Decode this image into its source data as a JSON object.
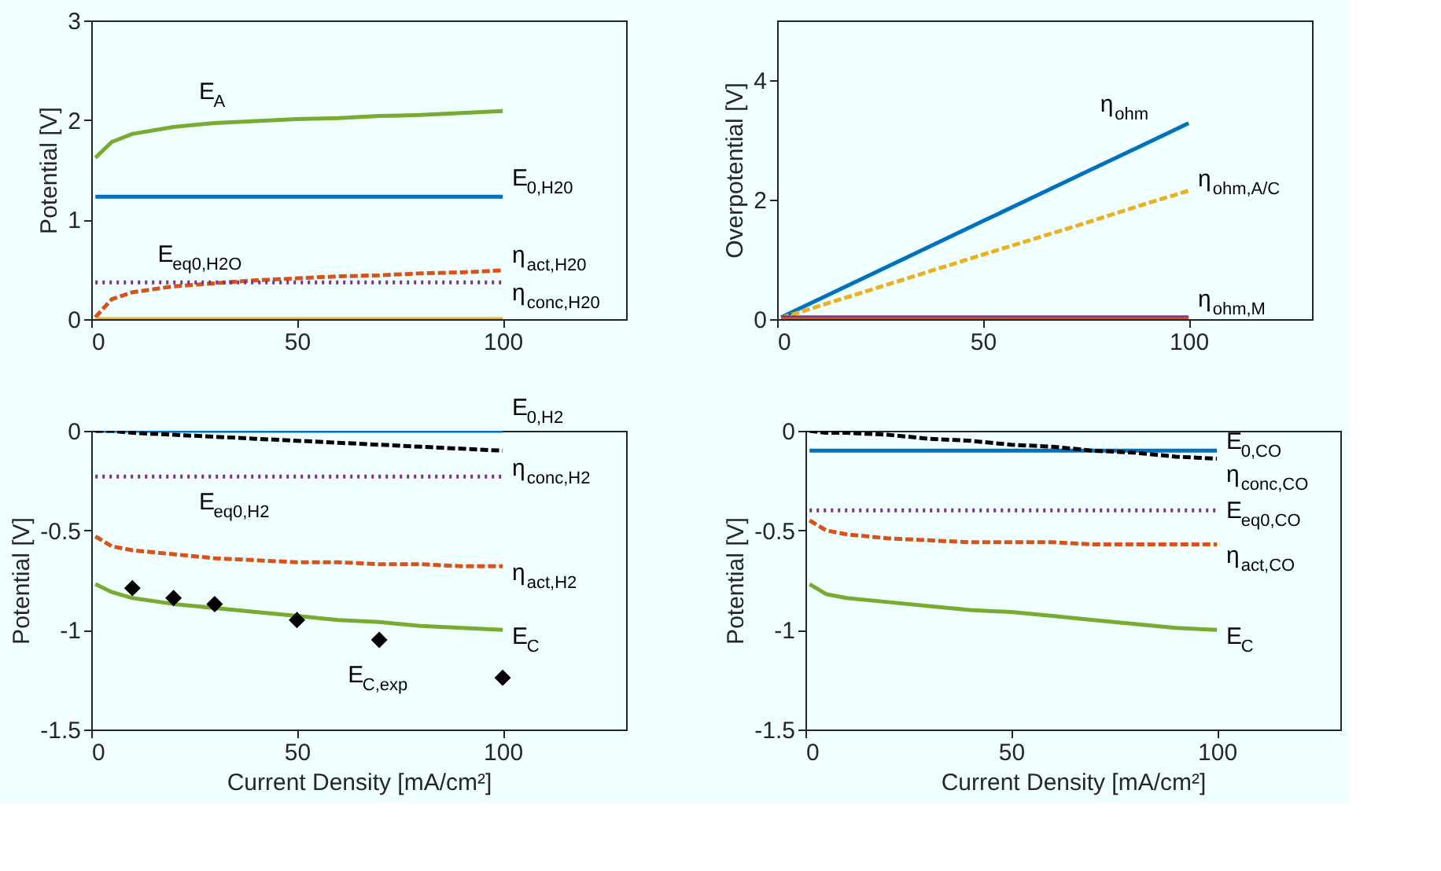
{
  "chart_data": [
    {
      "type": "line",
      "ylabel": "Potential [V]",
      "xlim": [
        0,
        130
      ],
      "xticks": [
        0,
        50,
        100
      ],
      "ylim": [
        0,
        3
      ],
      "yticks": [
        0,
        1,
        2,
        3
      ],
      "grid": false,
      "x": [
        1,
        5,
        10,
        20,
        30,
        40,
        50,
        60,
        70,
        80,
        90,
        100
      ],
      "series": [
        {
          "name": "E$_{A}$",
          "color": "#77ac30",
          "line_style": "solid",
          "values": [
            1.62,
            1.78,
            1.86,
            1.93,
            1.97,
            1.99,
            2.01,
            2.02,
            2.04,
            2.05,
            2.07,
            2.09
          ]
        },
        {
          "name": "E$_{0,H20}$",
          "color": "#0072bd",
          "line_style": "solid",
          "values": [
            1.23,
            1.23,
            1.23,
            1.23,
            1.23,
            1.23,
            1.23,
            1.23,
            1.23,
            1.23,
            1.23,
            1.23
          ]
        },
        {
          "name": "η$_{act,H20}$",
          "color": "#d95319",
          "line_style": "dashed",
          "values": [
            0.02,
            0.2,
            0.27,
            0.33,
            0.36,
            0.39,
            0.41,
            0.43,
            0.44,
            0.46,
            0.47,
            0.49
          ]
        },
        {
          "name": "E$_{eq0,H2O}$",
          "color": "#7e2f8e",
          "line_style": "dotted",
          "values": [
            0.37,
            0.37,
            0.37,
            0.37,
            0.37,
            0.37,
            0.37,
            0.37,
            0.37,
            0.37,
            0.37,
            0.37
          ]
        },
        {
          "name": "η$_{conc,H20}$",
          "color": "#edb120",
          "line_style": "solid",
          "values": [
            0,
            0,
            0,
            0,
            0,
            0,
            0,
            0,
            0,
            0,
            0,
            0
          ]
        }
      ]
    },
    {
      "type": "line",
      "ylabel": "Overpotential [V]",
      "xlim": [
        0,
        130
      ],
      "xticks": [
        0,
        50,
        100
      ],
      "ylim": [
        0,
        5
      ],
      "yticks": [
        0,
        2,
        4
      ],
      "grid": false,
      "x": [
        1,
        25,
        50,
        75,
        90,
        100
      ],
      "series": [
        {
          "name": "η$_{ohm}$",
          "color": "#0072bd",
          "line_style": "solid",
          "values": [
            0.03,
            0.82,
            1.64,
            2.46,
            2.95,
            3.28
          ]
        },
        {
          "name": "η$_{ohm,A/C}$",
          "color": "#edb120",
          "line_style": "dashed",
          "values": [
            0.02,
            0.54,
            1.08,
            1.61,
            1.94,
            2.15
          ]
        },
        {
          "name": "η$_{ohm,M}$",
          "color": "#7e2f8e",
          "line_style": "solid",
          "values": [
            0.03,
            0.03,
            0.03,
            0.03,
            0.03,
            0.03
          ]
        },
        {
          "color": "#d95319",
          "line_style": "solid",
          "values": [
            0,
            0,
            0,
            0,
            0,
            0
          ]
        }
      ]
    },
    {
      "type": "line",
      "xlabel": "Current Density [mA/cm²]",
      "ylabel": "Potential [V]",
      "xlim": [
        0,
        130
      ],
      "xticks": [
        0,
        50,
        100
      ],
      "ylim": [
        -1.5,
        0
      ],
      "yticks": [
        -1.5,
        -1,
        -0.5,
        0
      ],
      "grid": false,
      "x": [
        1,
        5,
        10,
        20,
        30,
        40,
        50,
        60,
        70,
        80,
        90,
        100
      ],
      "series": [
        {
          "name": "E$_{0,H2}$",
          "color": "#0072bd",
          "line_style": "solid",
          "values": [
            0,
            0,
            0,
            0,
            0,
            0,
            0,
            0,
            0,
            0,
            0,
            0
          ]
        },
        {
          "name": "η$_{conc,H2}$",
          "color": "#000000",
          "line_style": "dashed",
          "values": [
            0,
            0,
            -0.01,
            -0.02,
            -0.03,
            -0.04,
            -0.05,
            -0.06,
            -0.07,
            -0.08,
            -0.09,
            -0.1
          ]
        },
        {
          "name": "E$_{eq0,H2}$",
          "color": "#7e2f8e",
          "line_style": "dotted",
          "values": [
            -0.23,
            -0.23,
            -0.23,
            -0.23,
            -0.23,
            -0.23,
            -0.23,
            -0.23,
            -0.23,
            -0.23,
            -0.23,
            -0.23
          ]
        },
        {
          "name": "η$_{act,H2}$",
          "color": "#d95319",
          "line_style": "dashed",
          "values": [
            -0.53,
            -0.58,
            -0.6,
            -0.62,
            -0.64,
            -0.65,
            -0.66,
            -0.66,
            -0.67,
            -0.67,
            -0.68,
            -0.68
          ]
        },
        {
          "name": "E$_{C}$",
          "color": "#77ac30",
          "line_style": "solid",
          "values": [
            -0.77,
            -0.81,
            -0.84,
            -0.87,
            -0.89,
            -0.91,
            -0.93,
            -0.95,
            -0.96,
            -0.98,
            -0.99,
            -1.0
          ]
        },
        {
          "name": "E$_{C,exp}$",
          "type": "scatter",
          "marker": "diamond",
          "color": "#000000",
          "x": [
            10,
            20,
            30,
            50,
            70,
            100
          ],
          "values": [
            -0.79,
            -0.84,
            -0.87,
            -0.95,
            -1.05,
            -1.24
          ]
        }
      ]
    },
    {
      "type": "line",
      "xlabel": "Current Density [mA/cm²]",
      "ylabel": "Potential [V]",
      "xlim": [
        0,
        130
      ],
      "xticks": [
        0,
        50,
        100
      ],
      "ylim": [
        -1.5,
        0
      ],
      "yticks": [
        -1.5,
        -1,
        -0.5,
        0
      ],
      "grid": false,
      "x": [
        1,
        5,
        10,
        20,
        30,
        40,
        50,
        60,
        70,
        80,
        90,
        100
      ],
      "series": [
        {
          "name": "E$_{0,CO}$",
          "color": "#0072bd",
          "line_style": "solid",
          "values": [
            -0.1,
            -0.1,
            -0.1,
            -0.1,
            -0.1,
            -0.1,
            -0.1,
            -0.1,
            -0.1,
            -0.1,
            -0.1,
            -0.1
          ]
        },
        {
          "name": "η$_{conc,CO}$",
          "color": "#000000",
          "line_style": "dashed",
          "values": [
            0,
            -0.01,
            -0.01,
            -0.02,
            -0.04,
            -0.05,
            -0.07,
            -0.08,
            -0.1,
            -0.11,
            -0.13,
            -0.14
          ]
        },
        {
          "name": "E$_{eq0,CO}$",
          "color": "#7e2f8e",
          "line_style": "dotted",
          "values": [
            -0.4,
            -0.4,
            -0.4,
            -0.4,
            -0.4,
            -0.4,
            -0.4,
            -0.4,
            -0.4,
            -0.4,
            -0.4,
            -0.4
          ]
        },
        {
          "name": "η$_{act,CO}$",
          "color": "#d95319",
          "line_style": "dashed",
          "values": [
            -0.45,
            -0.5,
            -0.52,
            -0.54,
            -0.55,
            -0.56,
            -0.56,
            -0.56,
            -0.57,
            -0.57,
            -0.57,
            -0.57
          ]
        },
        {
          "name": "E$_{C}$",
          "color": "#77ac30",
          "line_style": "solid",
          "values": [
            -0.77,
            -0.82,
            -0.84,
            -0.86,
            -0.88,
            -0.9,
            -0.91,
            -0.93,
            -0.95,
            -0.97,
            -0.99,
            -1.0
          ]
        }
      ]
    }
  ]
}
